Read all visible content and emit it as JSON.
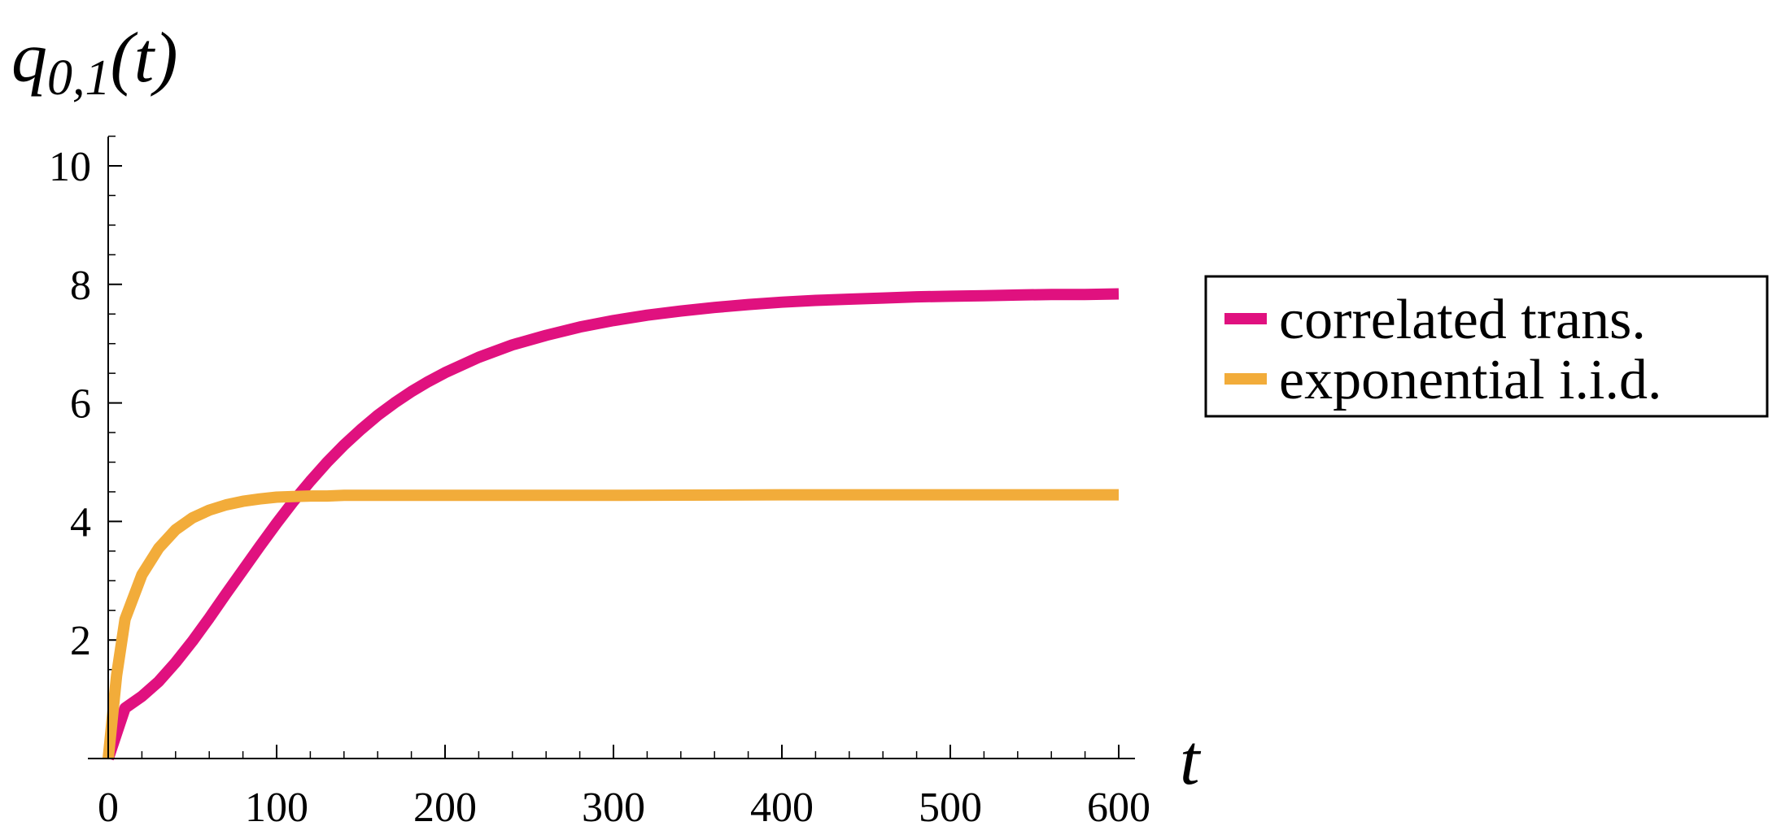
{
  "chart_data": {
    "type": "line",
    "ylabel": {
      "base": "q",
      "sub": "0,1",
      "arg": "(t)"
    },
    "xlabel": "t",
    "xlim": [
      0,
      600
    ],
    "ylim": [
      0,
      10.5
    ],
    "x_ticks": [
      0,
      100,
      200,
      300,
      400,
      500,
      600
    ],
    "y_ticks": [
      2,
      4,
      6,
      8,
      10
    ],
    "x_tick_labels": [
      "0",
      "100",
      "200",
      "300",
      "400",
      "500",
      "600"
    ],
    "y_tick_labels": [
      "2",
      "4",
      "6",
      "8",
      "10"
    ],
    "legend_position": "right",
    "series": [
      {
        "name": "correlated trans.",
        "color": "#e0117f",
        "x": [
          0,
          10,
          20,
          30,
          40,
          50,
          60,
          70,
          80,
          90,
          100,
          110,
          120,
          130,
          140,
          150,
          160,
          170,
          180,
          190,
          200,
          220,
          240,
          260,
          280,
          300,
          320,
          340,
          360,
          380,
          400,
          420,
          440,
          460,
          480,
          500,
          520,
          540,
          560,
          580,
          600
        ],
        "y": [
          0,
          0.85,
          1.05,
          1.3,
          1.62,
          1.98,
          2.37,
          2.78,
          3.18,
          3.58,
          3.97,
          4.34,
          4.68,
          5.0,
          5.29,
          5.55,
          5.79,
          6.0,
          6.19,
          6.36,
          6.51,
          6.77,
          6.98,
          7.14,
          7.28,
          7.39,
          7.48,
          7.55,
          7.61,
          7.66,
          7.7,
          7.73,
          7.75,
          7.77,
          7.79,
          7.8,
          7.81,
          7.82,
          7.83,
          7.83,
          7.84
        ]
      },
      {
        "name": "exponential i.i.d.",
        "color": "#f2ac3a",
        "x": [
          0,
          5,
          10,
          20,
          30,
          40,
          50,
          60,
          70,
          80,
          90,
          100,
          110,
          120,
          130,
          140,
          160,
          200,
          250,
          300,
          400,
          500,
          600
        ],
        "y": [
          0,
          1.4,
          2.35,
          3.1,
          3.55,
          3.86,
          4.06,
          4.19,
          4.28,
          4.34,
          4.38,
          4.41,
          4.42,
          4.43,
          4.43,
          4.44,
          4.44,
          4.44,
          4.44,
          4.44,
          4.45,
          4.45,
          4.45
        ]
      }
    ]
  }
}
